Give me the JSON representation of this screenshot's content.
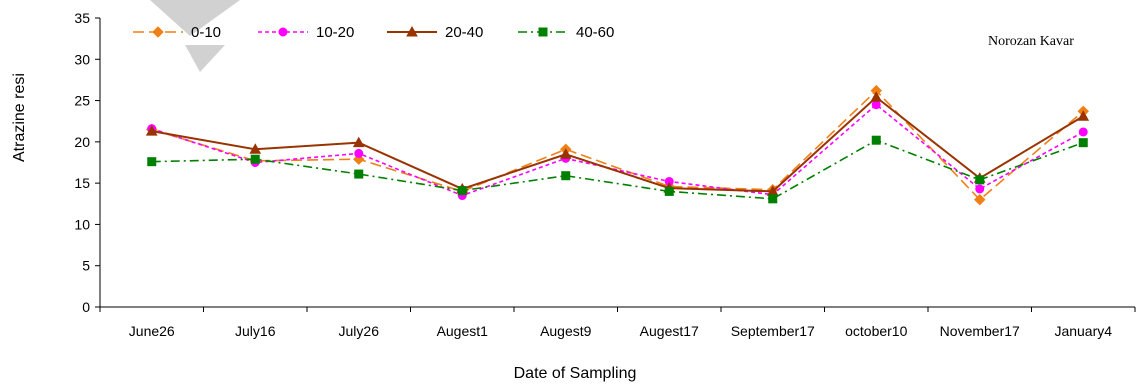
{
  "chart_data": {
    "type": "line",
    "title": "",
    "xlabel": "Date of Sampling",
    "ylabel": "Atrazine resi",
    "categories": [
      "June26",
      "July16",
      "July26",
      "Augest1",
      "Augest9",
      "Augest17",
      "September17",
      "october10",
      "November17",
      "January4"
    ],
    "ylim": [
      0,
      35
    ],
    "yticks": [
      "0",
      "5",
      "10",
      "15",
      "20",
      "25",
      "30",
      "35"
    ],
    "grid": false,
    "legend_position": "top-left",
    "annotation": "Norozan Kavar",
    "series": [
      {
        "name": "0-10",
        "color": "#F07F16",
        "dash": "long-dash",
        "marker": "diamond",
        "values": [
          21.5,
          17.7,
          17.9,
          14.0,
          19.1,
          14.6,
          14.2,
          26.2,
          13.0,
          23.7
        ]
      },
      {
        "name": "10-20",
        "color": "#FF00FF",
        "dash": "short-dash",
        "marker": "circle",
        "values": [
          21.6,
          17.5,
          18.6,
          13.5,
          18.0,
          15.2,
          13.6,
          24.5,
          14.3,
          21.2
        ]
      },
      {
        "name": "20-40",
        "color": "#993300",
        "dash": "solid",
        "marker": "triangle",
        "values": [
          21.3,
          19.1,
          19.9,
          14.3,
          18.5,
          14.4,
          14.0,
          25.4,
          15.6,
          23.1
        ]
      },
      {
        "name": "40-60",
        "color": "#008000",
        "dash": "dash-dot",
        "marker": "square",
        "values": [
          17.6,
          17.9,
          16.1,
          14.1,
          15.9,
          14.0,
          13.1,
          20.2,
          15.4,
          19.9
        ]
      }
    ]
  }
}
